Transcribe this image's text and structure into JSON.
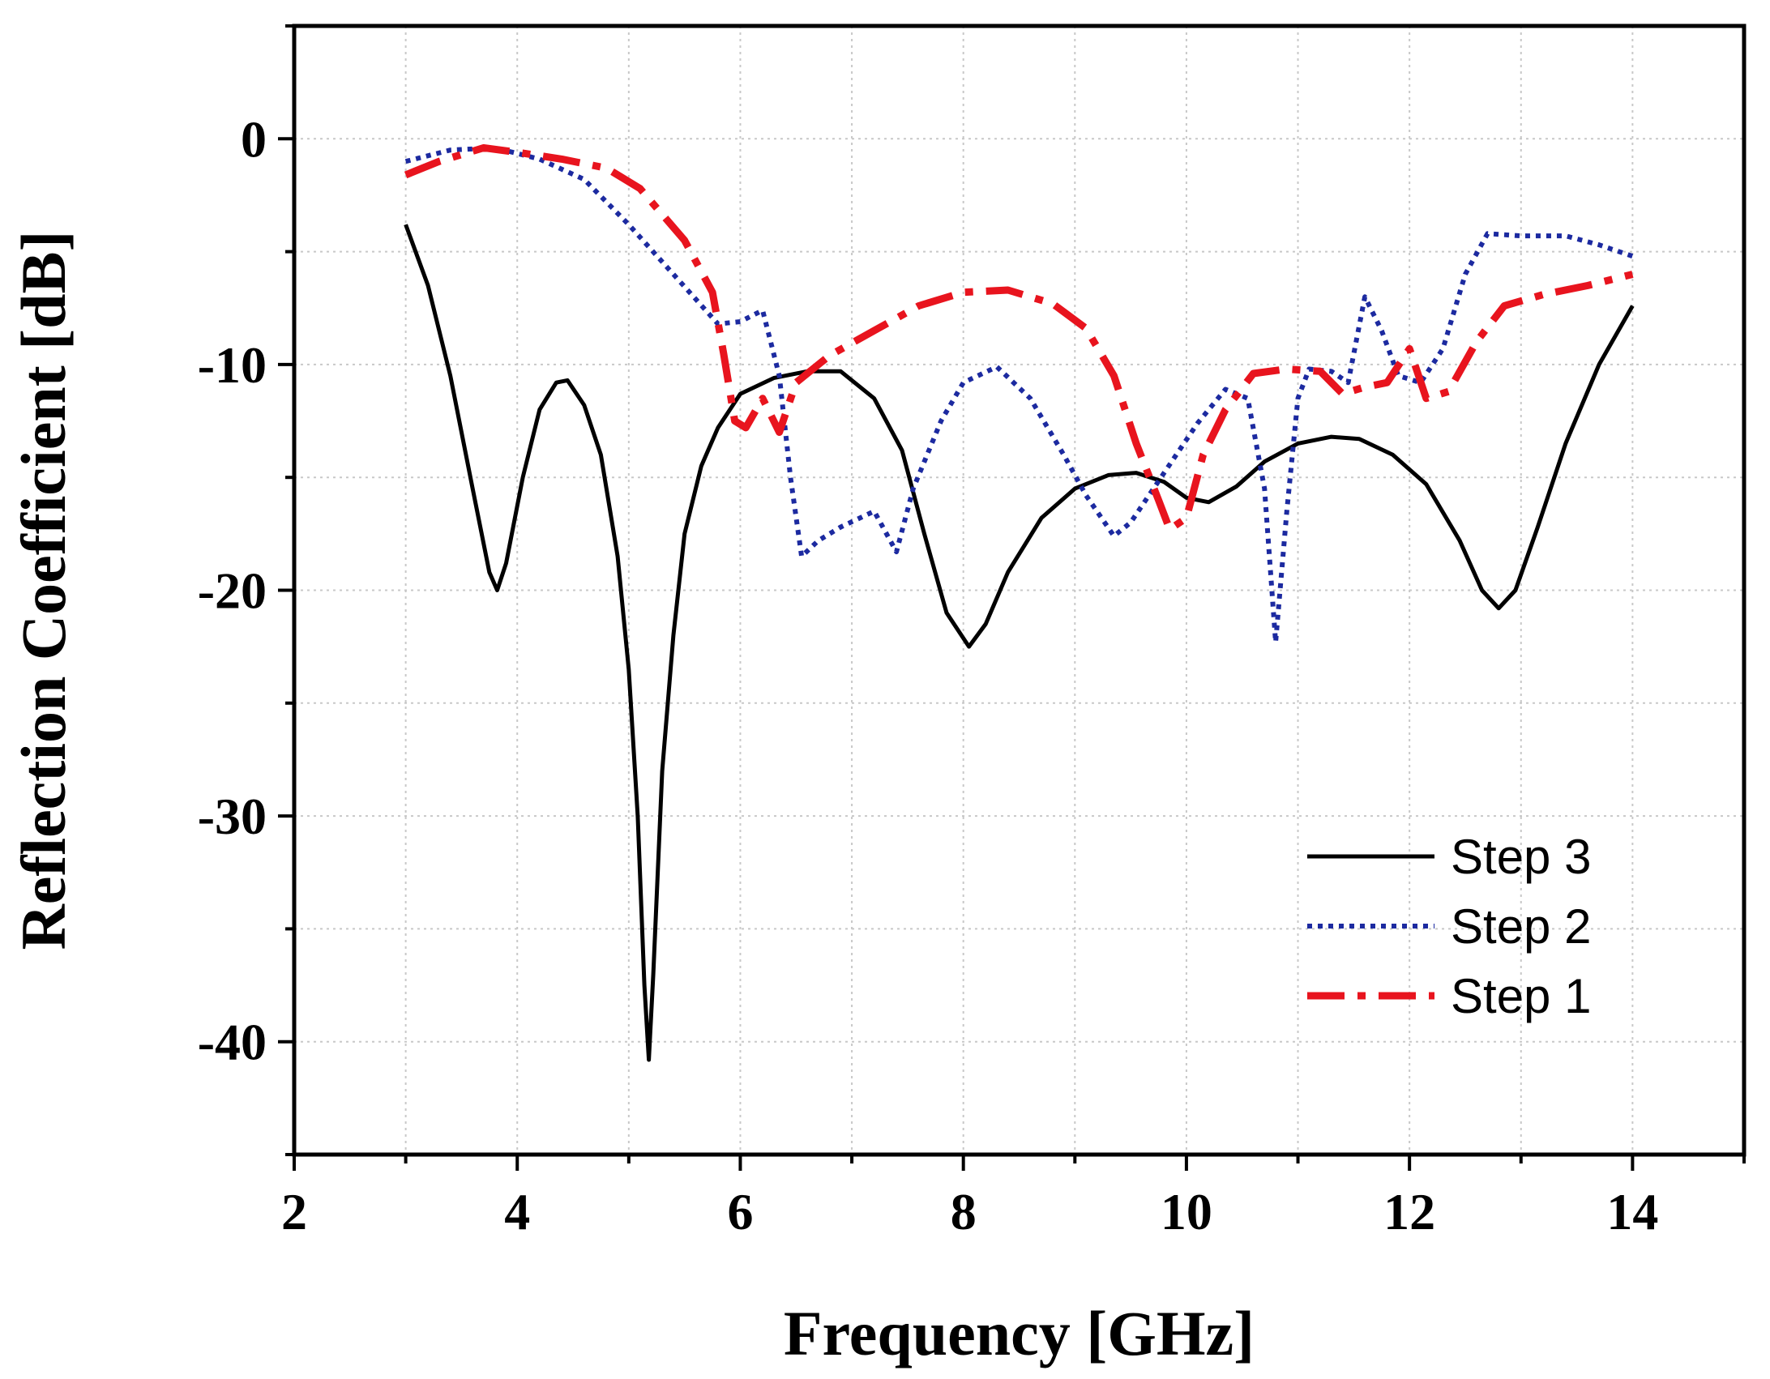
{
  "chart_data": {
    "type": "line",
    "title": "",
    "xlabel": "Frequency [GHz]",
    "ylabel": "Reflection Coefficient [dB]",
    "xlim": [
      2,
      15
    ],
    "ylim": [
      -45,
      5
    ],
    "xticks": [
      2,
      4,
      6,
      8,
      10,
      12,
      14
    ],
    "yticks": [
      -40,
      -30,
      -20,
      -10,
      0
    ],
    "grid": true,
    "legend_position": "lower-right",
    "series": [
      {
        "name": "Step 3",
        "color": "#000000",
        "style": "solid",
        "points": [
          [
            3.0,
            -3.8
          ],
          [
            3.2,
            -6.5
          ],
          [
            3.4,
            -10.5
          ],
          [
            3.6,
            -15.5
          ],
          [
            3.75,
            -19.2
          ],
          [
            3.82,
            -20.0
          ],
          [
            3.9,
            -18.8
          ],
          [
            4.05,
            -15.0
          ],
          [
            4.2,
            -12.0
          ],
          [
            4.35,
            -10.8
          ],
          [
            4.45,
            -10.7
          ],
          [
            4.6,
            -11.8
          ],
          [
            4.75,
            -14.0
          ],
          [
            4.9,
            -18.5
          ],
          [
            5.0,
            -23.5
          ],
          [
            5.08,
            -30.0
          ],
          [
            5.14,
            -37.5
          ],
          [
            5.18,
            -40.8
          ],
          [
            5.22,
            -37.0
          ],
          [
            5.3,
            -28.0
          ],
          [
            5.4,
            -22.0
          ],
          [
            5.5,
            -17.5
          ],
          [
            5.65,
            -14.5
          ],
          [
            5.8,
            -12.8
          ],
          [
            6.0,
            -11.3
          ],
          [
            6.3,
            -10.6
          ],
          [
            6.6,
            -10.3
          ],
          [
            6.9,
            -10.3
          ],
          [
            7.2,
            -11.5
          ],
          [
            7.45,
            -13.8
          ],
          [
            7.65,
            -17.5
          ],
          [
            7.85,
            -21.0
          ],
          [
            8.05,
            -22.5
          ],
          [
            8.2,
            -21.5
          ],
          [
            8.4,
            -19.2
          ],
          [
            8.7,
            -16.8
          ],
          [
            9.0,
            -15.5
          ],
          [
            9.3,
            -14.9
          ],
          [
            9.55,
            -14.8
          ],
          [
            9.8,
            -15.2
          ],
          [
            10.0,
            -15.9
          ],
          [
            10.2,
            -16.1
          ],
          [
            10.45,
            -15.4
          ],
          [
            10.7,
            -14.3
          ],
          [
            11.0,
            -13.5
          ],
          [
            11.3,
            -13.2
          ],
          [
            11.55,
            -13.3
          ],
          [
            11.85,
            -14.0
          ],
          [
            12.15,
            -15.3
          ],
          [
            12.45,
            -17.8
          ],
          [
            12.65,
            -20.0
          ],
          [
            12.8,
            -20.8
          ],
          [
            12.95,
            -20.0
          ],
          [
            13.15,
            -17.2
          ],
          [
            13.4,
            -13.5
          ],
          [
            13.7,
            -10.0
          ],
          [
            14.0,
            -7.4
          ]
        ]
      },
      {
        "name": "Step 2",
        "color": "#1c2aa0",
        "style": "dotted",
        "points": [
          [
            3.0,
            -1.0
          ],
          [
            3.4,
            -0.5
          ],
          [
            3.8,
            -0.4
          ],
          [
            4.2,
            -0.9
          ],
          [
            4.6,
            -1.8
          ],
          [
            5.0,
            -3.8
          ],
          [
            5.4,
            -6.0
          ],
          [
            5.8,
            -8.2
          ],
          [
            6.0,
            -8.1
          ],
          [
            6.2,
            -7.6
          ],
          [
            6.35,
            -10.5
          ],
          [
            6.45,
            -15.0
          ],
          [
            6.55,
            -18.5
          ],
          [
            6.7,
            -17.8
          ],
          [
            6.9,
            -17.2
          ],
          [
            7.2,
            -16.5
          ],
          [
            7.4,
            -18.3
          ],
          [
            7.55,
            -15.5
          ],
          [
            7.8,
            -12.5
          ],
          [
            8.0,
            -10.8
          ],
          [
            8.3,
            -10.1
          ],
          [
            8.6,
            -11.5
          ],
          [
            8.9,
            -14.0
          ],
          [
            9.1,
            -15.8
          ],
          [
            9.35,
            -17.6
          ],
          [
            9.5,
            -17.0
          ],
          [
            9.8,
            -14.8
          ],
          [
            10.1,
            -12.6
          ],
          [
            10.35,
            -11.1
          ],
          [
            10.55,
            -11.5
          ],
          [
            10.7,
            -15.5
          ],
          [
            10.8,
            -22.3
          ],
          [
            10.9,
            -16.5
          ],
          [
            11.0,
            -11.5
          ],
          [
            11.1,
            -10.2
          ],
          [
            11.3,
            -10.3
          ],
          [
            11.45,
            -10.8
          ],
          [
            11.6,
            -7.0
          ],
          [
            11.75,
            -8.5
          ],
          [
            11.9,
            -10.5
          ],
          [
            12.1,
            -10.8
          ],
          [
            12.3,
            -9.3
          ],
          [
            12.5,
            -6.0
          ],
          [
            12.7,
            -4.2
          ],
          [
            13.0,
            -4.3
          ],
          [
            13.4,
            -4.3
          ],
          [
            13.7,
            -4.7
          ],
          [
            14.0,
            -5.2
          ]
        ]
      },
      {
        "name": "Step 1",
        "color": "#e8141e",
        "style": "dashdot",
        "points": [
          [
            3.0,
            -1.6
          ],
          [
            3.3,
            -1.0
          ],
          [
            3.7,
            -0.4
          ],
          [
            4.0,
            -0.6
          ],
          [
            4.4,
            -0.9
          ],
          [
            4.8,
            -1.3
          ],
          [
            5.1,
            -2.2
          ],
          [
            5.5,
            -4.5
          ],
          [
            5.75,
            -6.8
          ],
          [
            5.85,
            -9.5
          ],
          [
            5.95,
            -12.5
          ],
          [
            6.05,
            -12.8
          ],
          [
            6.2,
            -11.5
          ],
          [
            6.35,
            -13.0
          ],
          [
            6.5,
            -10.8
          ],
          [
            6.8,
            -9.6
          ],
          [
            7.2,
            -8.5
          ],
          [
            7.6,
            -7.4
          ],
          [
            8.0,
            -6.8
          ],
          [
            8.4,
            -6.7
          ],
          [
            8.8,
            -7.3
          ],
          [
            9.1,
            -8.4
          ],
          [
            9.35,
            -10.5
          ],
          [
            9.55,
            -13.5
          ],
          [
            9.75,
            -16.0
          ],
          [
            9.85,
            -17.3
          ],
          [
            10.0,
            -16.8
          ],
          [
            10.15,
            -14.0
          ],
          [
            10.35,
            -12.0
          ],
          [
            10.6,
            -10.4
          ],
          [
            10.9,
            -10.2
          ],
          [
            11.2,
            -10.3
          ],
          [
            11.4,
            -11.3
          ],
          [
            11.6,
            -11.0
          ],
          [
            11.8,
            -10.8
          ],
          [
            12.0,
            -9.3
          ],
          [
            12.15,
            -11.5
          ],
          [
            12.35,
            -11.2
          ],
          [
            12.6,
            -9.0
          ],
          [
            12.85,
            -7.4
          ],
          [
            13.2,
            -6.9
          ],
          [
            13.6,
            -6.5
          ],
          [
            14.0,
            -6.0
          ]
        ]
      }
    ]
  }
}
